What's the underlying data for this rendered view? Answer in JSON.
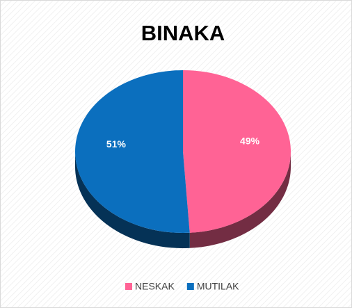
{
  "chart_data": {
    "type": "pie",
    "title": "BINAKA",
    "categories": [
      "NESKAK",
      "MUTILAK"
    ],
    "values": [
      49,
      51
    ],
    "value_labels": [
      "49%",
      "51%"
    ],
    "colors": [
      "#ff6395",
      "#0b6fbe"
    ],
    "legend": "bottom"
  }
}
